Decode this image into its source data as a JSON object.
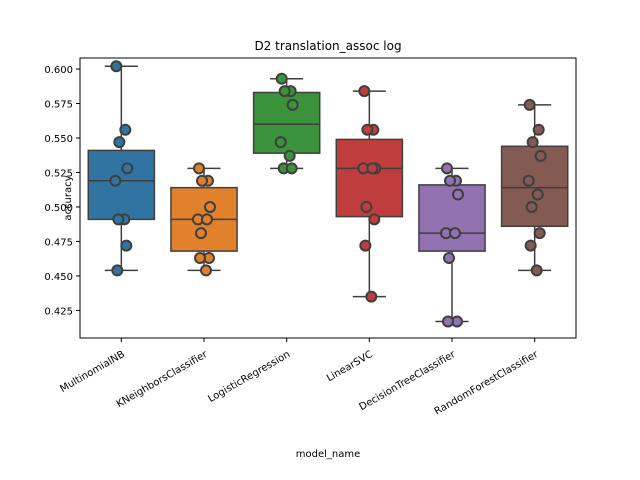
{
  "chart_data": {
    "type": "box",
    "title": "D2 translation_assoc log",
    "xlabel": "model_name",
    "ylabel": "accuracy",
    "ylim": [
      0.405,
      0.608
    ],
    "yticks": [
      "0.425",
      "0.450",
      "0.475",
      "0.500",
      "0.525",
      "0.550",
      "0.575",
      "0.600"
    ],
    "categories": [
      "MultinomialNB",
      "KNeighborsClassifier",
      "LogisticRegression",
      "LinearSVC",
      "DecisionTreeClassifier",
      "RandomForestClassifier"
    ],
    "colors": [
      "#3274a1",
      "#e1812c",
      "#3a923a",
      "#c03d3e",
      "#9372b2",
      "#845b53"
    ],
    "boxes": [
      {
        "whisker_low": 0.454,
        "q1": 0.491,
        "median": 0.519,
        "q3": 0.541,
        "whisker_high": 0.602
      },
      {
        "whisker_low": 0.454,
        "q1": 0.468,
        "median": 0.491,
        "q3": 0.514,
        "whisker_high": 0.528
      },
      {
        "whisker_low": 0.528,
        "q1": 0.539,
        "median": 0.56,
        "q3": 0.583,
        "whisker_high": 0.593
      },
      {
        "whisker_low": 0.435,
        "q1": 0.493,
        "median": 0.528,
        "q3": 0.549,
        "whisker_high": 0.584
      },
      {
        "whisker_low": 0.417,
        "q1": 0.468,
        "median": 0.481,
        "q3": 0.516,
        "whisker_high": 0.528
      },
      {
        "whisker_low": 0.454,
        "q1": 0.486,
        "median": 0.514,
        "q3": 0.544,
        "whisker_high": 0.574
      }
    ],
    "points": [
      {
        "x": 0,
        "y": 0.602
      },
      {
        "x": 0,
        "y": 0.556
      },
      {
        "x": 0,
        "y": 0.547
      },
      {
        "x": 0,
        "y": 0.528
      },
      {
        "x": 0,
        "y": 0.519
      },
      {
        "x": 0,
        "y": 0.491
      },
      {
        "x": 0,
        "y": 0.491
      },
      {
        "x": 0,
        "y": 0.472
      },
      {
        "x": 0,
        "y": 0.454
      },
      {
        "x": 1,
        "y": 0.528
      },
      {
        "x": 1,
        "y": 0.519
      },
      {
        "x": 1,
        "y": 0.519
      },
      {
        "x": 1,
        "y": 0.5
      },
      {
        "x": 1,
        "y": 0.491
      },
      {
        "x": 1,
        "y": 0.491
      },
      {
        "x": 1,
        "y": 0.481
      },
      {
        "x": 1,
        "y": 0.463
      },
      {
        "x": 1,
        "y": 0.463
      },
      {
        "x": 1,
        "y": 0.454
      },
      {
        "x": 2,
        "y": 0.593
      },
      {
        "x": 2,
        "y": 0.584
      },
      {
        "x": 2,
        "y": 0.584
      },
      {
        "x": 2,
        "y": 0.574
      },
      {
        "x": 2,
        "y": 0.547
      },
      {
        "x": 2,
        "y": 0.537
      },
      {
        "x": 2,
        "y": 0.528
      },
      {
        "x": 2,
        "y": 0.528
      },
      {
        "x": 3,
        "y": 0.584
      },
      {
        "x": 3,
        "y": 0.556
      },
      {
        "x": 3,
        "y": 0.556
      },
      {
        "x": 3,
        "y": 0.528
      },
      {
        "x": 3,
        "y": 0.528
      },
      {
        "x": 3,
        "y": 0.528
      },
      {
        "x": 3,
        "y": 0.5
      },
      {
        "x": 3,
        "y": 0.491
      },
      {
        "x": 3,
        "y": 0.472
      },
      {
        "x": 3,
        "y": 0.435
      },
      {
        "x": 4,
        "y": 0.528
      },
      {
        "x": 4,
        "y": 0.519
      },
      {
        "x": 4,
        "y": 0.519
      },
      {
        "x": 4,
        "y": 0.509
      },
      {
        "x": 4,
        "y": 0.481
      },
      {
        "x": 4,
        "y": 0.481
      },
      {
        "x": 4,
        "y": 0.463
      },
      {
        "x": 4,
        "y": 0.417
      },
      {
        "x": 4,
        "y": 0.417
      },
      {
        "x": 5,
        "y": 0.574
      },
      {
        "x": 5,
        "y": 0.556
      },
      {
        "x": 5,
        "y": 0.547
      },
      {
        "x": 5,
        "y": 0.537
      },
      {
        "x": 5,
        "y": 0.519
      },
      {
        "x": 5,
        "y": 0.509
      },
      {
        "x": 5,
        "y": 0.5
      },
      {
        "x": 5,
        "y": 0.481
      },
      {
        "x": 5,
        "y": 0.472
      },
      {
        "x": 5,
        "y": 0.454
      }
    ]
  }
}
